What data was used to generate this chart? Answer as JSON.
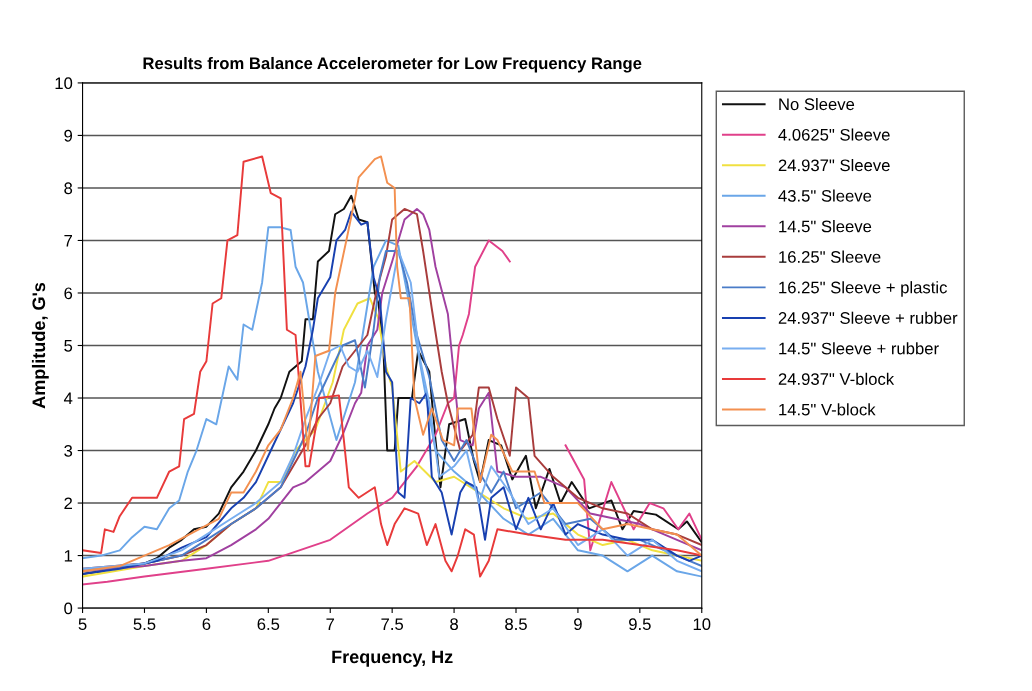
{
  "chart_data": {
    "type": "line",
    "title": "Results from Balance Accelerometer for Low Frequency Range",
    "xlabel": "Frequency, Hz",
    "ylabel": "Amplitude, G's",
    "xlim": [
      5,
      10
    ],
    "xticks": [
      5,
      5.5,
      6,
      6.5,
      7,
      7.5,
      8,
      8.5,
      9,
      9.5,
      10
    ],
    "ylim": [
      0,
      10
    ],
    "yticks": [
      0,
      1,
      2,
      3,
      4,
      5,
      6,
      7,
      8,
      9,
      10
    ],
    "grid": "y",
    "legend": "top right",
    "marker": "none",
    "line_style": "solid",
    "series": [
      {
        "name": "No Sleeve",
        "color": "#111111",
        "x": [
          5.0,
          5.15,
          5.3,
          5.5,
          5.6,
          5.7,
          5.8,
          5.9,
          6.0,
          6.1,
          6.2,
          6.3,
          6.4,
          6.5,
          6.55,
          6.6,
          6.67,
          6.77,
          6.8,
          6.86,
          6.9,
          6.99,
          7.04,
          7.11,
          7.17,
          7.23,
          7.3,
          7.36,
          7.39,
          7.43,
          7.46,
          7.52,
          7.55,
          7.66,
          7.71,
          7.8,
          7.85,
          7.89,
          7.96,
          8.09,
          8.16,
          8.21,
          8.28,
          8.38,
          8.47,
          8.58,
          8.66,
          8.77,
          8.86,
          8.95,
          9.09,
          9.27,
          9.36,
          9.45,
          9.63,
          9.81,
          9.88,
          10.0
        ],
        "values": [
          0.65,
          0.7,
          0.8,
          0.85,
          0.95,
          1.15,
          1.3,
          1.5,
          1.55,
          1.8,
          2.3,
          2.6,
          3.0,
          3.5,
          3.8,
          4.0,
          4.5,
          4.7,
          5.5,
          5.5,
          6.6,
          6.8,
          7.5,
          7.6,
          7.85,
          7.4,
          7.35,
          6.0,
          5.8,
          4.9,
          3.0,
          3.0,
          4.0,
          4.0,
          4.9,
          4.5,
          3.2,
          2.3,
          3.5,
          3.6,
          2.8,
          2.4,
          3.2,
          3.1,
          2.45,
          2.9,
          1.9,
          2.65,
          2.0,
          2.4,
          1.9,
          2.05,
          1.5,
          1.85,
          1.78,
          1.5,
          1.65,
          1.25
        ]
      },
      {
        "name": "4.0625\" Sleeve",
        "color": "#e0408a",
        "x": [
          5.0,
          5.2,
          5.5,
          6.0,
          6.5,
          7.0,
          7.3,
          7.5,
          7.7,
          7.85,
          7.95,
          8.0,
          8.04,
          8.07,
          8.12,
          8.17,
          8.28,
          8.39,
          8.45,
          8.6,
          8.8,
          8.9,
          9.05,
          9.1,
          9.27,
          9.45,
          9.58,
          9.69,
          9.81,
          9.9,
          10.0
        ],
        "values": [
          0.45,
          0.5,
          0.6,
          0.75,
          0.9,
          1.3,
          1.8,
          2.1,
          2.7,
          3.3,
          3.9,
          4.0,
          5.0,
          5.2,
          5.6,
          6.5,
          7.0,
          6.8,
          6.6,
          null,
          null,
          3.1,
          2.45,
          1.1,
          2.4,
          1.5,
          2.0,
          1.9,
          1.5,
          1.8,
          1.3
        ]
      },
      {
        "name": "24.937\" Sleeve",
        "color": "#f0e040",
        "x": [
          5.0,
          5.5,
          5.8,
          6.0,
          6.2,
          6.4,
          6.5,
          6.61,
          6.72,
          6.88,
          7.02,
          7.11,
          7.22,
          7.32,
          7.39,
          7.45,
          7.5,
          7.57,
          7.68,
          7.85,
          8.0,
          8.2,
          8.4,
          8.6,
          8.8,
          9.0,
          9.2,
          9.4,
          9.6,
          9.8,
          10.0
        ],
        "values": [
          0.6,
          0.8,
          0.9,
          1.2,
          1.6,
          1.9,
          2.4,
          2.4,
          3.0,
          3.4,
          4.3,
          5.3,
          5.8,
          5.9,
          5.5,
          4.6,
          4.2,
          2.6,
          2.8,
          2.4,
          2.5,
          2.2,
          1.9,
          1.7,
          1.8,
          1.4,
          1.2,
          1.3,
          1.1,
          1.0,
          0.9
        ]
      },
      {
        "name": "43.5\" Sleeve",
        "color": "#6aa6e8",
        "x": [
          5.0,
          5.15,
          5.3,
          5.4,
          5.5,
          5.6,
          5.7,
          5.78,
          5.85,
          5.92,
          6.0,
          6.08,
          6.18,
          6.25,
          6.3,
          6.37,
          6.45,
          6.5,
          6.6,
          6.68,
          6.72,
          6.78,
          6.9,
          7.05,
          7.2,
          7.35,
          7.45,
          7.55,
          7.7,
          7.85,
          8.0,
          8.2,
          8.4,
          8.6,
          8.8,
          9.0,
          9.2,
          9.4,
          9.6,
          9.8,
          10.0
        ],
        "values": [
          0.95,
          1.0,
          1.1,
          1.35,
          1.55,
          1.5,
          1.9,
          2.05,
          2.6,
          3.0,
          3.6,
          3.5,
          4.6,
          4.35,
          5.4,
          5.3,
          6.2,
          7.25,
          7.25,
          7.2,
          6.5,
          6.2,
          4.5,
          3.2,
          4.3,
          6.5,
          7.0,
          6.9,
          5.0,
          3.0,
          2.6,
          2.2,
          1.7,
          1.4,
          1.7,
          1.1,
          1.0,
          0.7,
          1.0,
          0.7,
          0.6
        ]
      },
      {
        "name": "14.5\" Sleeve",
        "color": "#a040a0",
        "x": [
          5.0,
          5.5,
          5.8,
          6.0,
          6.2,
          6.4,
          6.5,
          6.6,
          6.7,
          6.8,
          6.9,
          7.0,
          7.1,
          7.2,
          7.25,
          7.3,
          7.38,
          7.42,
          7.5,
          7.6,
          7.7,
          7.75,
          7.8,
          7.85,
          7.95,
          8.0,
          8.05,
          8.15,
          8.2,
          8.28,
          8.35,
          8.5,
          8.7,
          8.9,
          9.1,
          9.3,
          9.5,
          9.7,
          9.9,
          10.0
        ],
        "values": [
          0.7,
          0.8,
          0.9,
          0.95,
          1.2,
          1.5,
          1.7,
          2.0,
          2.3,
          2.4,
          2.6,
          2.8,
          3.3,
          3.9,
          4.1,
          5.0,
          5.3,
          6.0,
          6.6,
          7.4,
          7.6,
          7.5,
          7.2,
          6.5,
          5.6,
          4.4,
          3.2,
          3.1,
          3.8,
          4.1,
          2.6,
          2.5,
          2.5,
          2.3,
          1.8,
          1.7,
          1.6,
          1.4,
          1.2,
          1.1
        ]
      },
      {
        "name": "16.25\" Sleeve",
        "color": "#a83c3c",
        "x": [
          5.0,
          5.5,
          5.8,
          6.0,
          6.2,
          6.4,
          6.6,
          6.7,
          6.8,
          6.9,
          7.0,
          7.1,
          7.2,
          7.3,
          7.38,
          7.45,
          7.5,
          7.6,
          7.7,
          7.75,
          7.82,
          7.9,
          7.95,
          8.05,
          8.15,
          8.2,
          8.28,
          8.35,
          8.45,
          8.5,
          8.6,
          8.65,
          8.8,
          9.0,
          9.2,
          9.4,
          9.6,
          9.8,
          10.0
        ],
        "values": [
          0.75,
          0.85,
          1.0,
          1.2,
          1.6,
          1.9,
          2.3,
          2.7,
          3.1,
          3.6,
          3.9,
          4.6,
          4.9,
          5.2,
          6.1,
          6.7,
          7.4,
          7.6,
          7.5,
          6.8,
          5.7,
          4.5,
          3.9,
          3.0,
          3.3,
          4.2,
          4.2,
          3.6,
          2.9,
          4.2,
          4.0,
          2.9,
          2.5,
          2.1,
          1.9,
          1.8,
          1.5,
          1.4,
          1.2
        ]
      },
      {
        "name": "16.25\" Sleeve + plastic",
        "color": "#4a7cc8",
        "x": [
          5.0,
          5.5,
          5.8,
          6.0,
          6.2,
          6.4,
          6.6,
          6.7,
          6.8,
          6.9,
          7.0,
          7.1,
          7.2,
          7.28,
          7.35,
          7.4,
          7.45,
          7.55,
          7.62,
          7.7,
          7.8,
          7.9,
          8.0,
          8.1,
          8.2,
          8.3,
          8.4,
          8.5,
          8.7,
          8.9,
          9.1,
          9.3,
          9.5,
          9.7,
          9.9,
          10.0
        ],
        "values": [
          0.7,
          0.85,
          1.0,
          1.3,
          1.6,
          1.9,
          2.3,
          2.8,
          3.3,
          4.0,
          4.5,
          5.0,
          5.1,
          4.2,
          5.3,
          6.3,
          6.8,
          6.8,
          6.2,
          5.2,
          4.4,
          3.2,
          2.8,
          3.2,
          2.6,
          2.2,
          2.6,
          1.9,
          2.2,
          1.6,
          1.7,
          1.3,
          1.3,
          1.1,
          0.9,
          0.8
        ]
      },
      {
        "name": "24.937\" Sleeve + rubber",
        "color": "#1840b0",
        "x": [
          5.0,
          5.3,
          5.6,
          5.8,
          6.0,
          6.2,
          6.3,
          6.4,
          6.5,
          6.6,
          6.7,
          6.8,
          6.86,
          6.9,
          7.0,
          7.05,
          7.12,
          7.17,
          7.25,
          7.3,
          7.35,
          7.4,
          7.45,
          7.5,
          7.55,
          7.6,
          7.65,
          7.72,
          7.78,
          7.82,
          7.9,
          7.98,
          8.05,
          8.1,
          8.18,
          8.25,
          8.3,
          8.4,
          8.5,
          8.6,
          8.7,
          8.8,
          8.9,
          9.0,
          9.2,
          9.4,
          9.6,
          9.8,
          9.9,
          10.0
        ],
        "values": [
          0.65,
          0.75,
          0.9,
          1.15,
          1.35,
          1.9,
          2.1,
          2.4,
          2.9,
          3.4,
          3.9,
          4.6,
          5.3,
          5.9,
          6.3,
          7.0,
          7.2,
          7.55,
          7.3,
          7.35,
          6.3,
          5.9,
          4.5,
          4.3,
          2.2,
          2.1,
          4.0,
          3.9,
          4.1,
          2.5,
          2.2,
          1.4,
          2.2,
          2.4,
          2.3,
          1.3,
          2.1,
          2.3,
          1.5,
          2.1,
          1.5,
          2.0,
          1.4,
          1.6,
          1.4,
          1.3,
          1.3,
          1.0,
          0.9,
          1.0
        ]
      },
      {
        "name": "14.5\" Sleeve + rubber",
        "color": "#78aef0",
        "x": [
          5.0,
          5.5,
          5.8,
          6.0,
          6.2,
          6.4,
          6.6,
          6.7,
          6.8,
          6.9,
          7.0,
          7.08,
          7.15,
          7.22,
          7.3,
          7.38,
          7.45,
          7.55,
          7.65,
          7.72,
          7.8,
          7.88,
          8.0,
          8.1,
          8.2,
          8.3,
          8.45,
          8.6,
          8.8,
          9.0,
          9.2,
          9.4,
          9.6,
          9.8,
          10.0
        ],
        "values": [
          0.75,
          0.85,
          1.1,
          1.4,
          1.7,
          2.0,
          2.4,
          2.9,
          3.6,
          4.2,
          4.9,
          5.0,
          4.6,
          4.5,
          4.9,
          4.4,
          5.5,
          6.8,
          6.2,
          4.8,
          3.9,
          2.5,
          2.7,
          3.0,
          2.0,
          2.7,
          2.2,
          1.6,
          1.9,
          1.2,
          1.5,
          1.0,
          1.3,
          0.9,
          0.7
        ]
      },
      {
        "name": "24.937\" V-block",
        "color": "#e83a3a",
        "x": [
          5.0,
          5.15,
          5.18,
          5.25,
          5.3,
          5.4,
          5.5,
          5.6,
          5.7,
          5.78,
          5.82,
          5.9,
          5.95,
          6.0,
          6.05,
          6.12,
          6.17,
          6.25,
          6.3,
          6.45,
          6.52,
          6.6,
          6.65,
          6.72,
          6.8,
          6.83,
          6.88,
          6.91,
          7.07,
          7.11,
          7.15,
          7.23,
          7.36,
          7.41,
          7.46,
          7.52,
          7.6,
          7.71,
          7.78,
          7.85,
          7.93,
          7.98,
          8.03,
          8.09,
          8.16,
          8.21,
          8.28,
          8.35,
          8.6,
          8.9,
          9.2,
          9.5,
          9.8,
          10.0
        ],
        "values": [
          1.1,
          1.05,
          1.5,
          1.45,
          1.75,
          2.1,
          2.1,
          2.1,
          2.6,
          2.7,
          3.6,
          3.7,
          4.5,
          4.7,
          5.8,
          5.9,
          7.0,
          7.1,
          8.5,
          8.6,
          7.9,
          7.8,
          5.3,
          5.2,
          2.7,
          2.7,
          3.4,
          4.0,
          4.05,
          3.2,
          2.3,
          2.1,
          2.3,
          1.6,
          1.2,
          1.6,
          1.9,
          1.8,
          1.2,
          1.6,
          0.9,
          0.7,
          1.0,
          1.5,
          1.4,
          0.6,
          0.9,
          1.5,
          1.4,
          1.3,
          1.3,
          1.2,
          1.1,
          1.0
        ]
      },
      {
        "name": "14.5\" V-block",
        "color": "#f39050",
        "x": [
          5.0,
          5.3,
          5.5,
          5.7,
          5.9,
          6.1,
          6.2,
          6.3,
          6.4,
          6.5,
          6.6,
          6.7,
          6.76,
          6.82,
          6.88,
          6.99,
          7.04,
          7.13,
          7.2,
          7.23,
          7.36,
          7.41,
          7.46,
          7.52,
          7.54,
          7.57,
          7.64,
          7.68,
          7.75,
          7.82,
          7.91,
          8.0,
          8.03,
          8.14,
          8.21,
          8.3,
          8.35,
          8.47,
          8.65,
          8.73,
          9.0,
          9.2,
          9.4,
          9.6,
          9.8,
          10.0
        ],
        "values": [
          0.7,
          0.8,
          1.0,
          1.2,
          1.45,
          1.7,
          2.2,
          2.2,
          2.6,
          3.1,
          3.4,
          4.0,
          4.5,
          3.0,
          4.8,
          4.9,
          6.0,
          7.0,
          7.8,
          8.2,
          8.55,
          8.6,
          8.1,
          8.0,
          6.5,
          5.9,
          5.9,
          4.0,
          3.3,
          3.8,
          3.2,
          3.1,
          3.8,
          3.8,
          2.4,
          3.3,
          3.2,
          2.6,
          2.6,
          2.0,
          2.0,
          1.5,
          1.6,
          1.5,
          1.4,
          1.0
        ]
      }
    ]
  }
}
